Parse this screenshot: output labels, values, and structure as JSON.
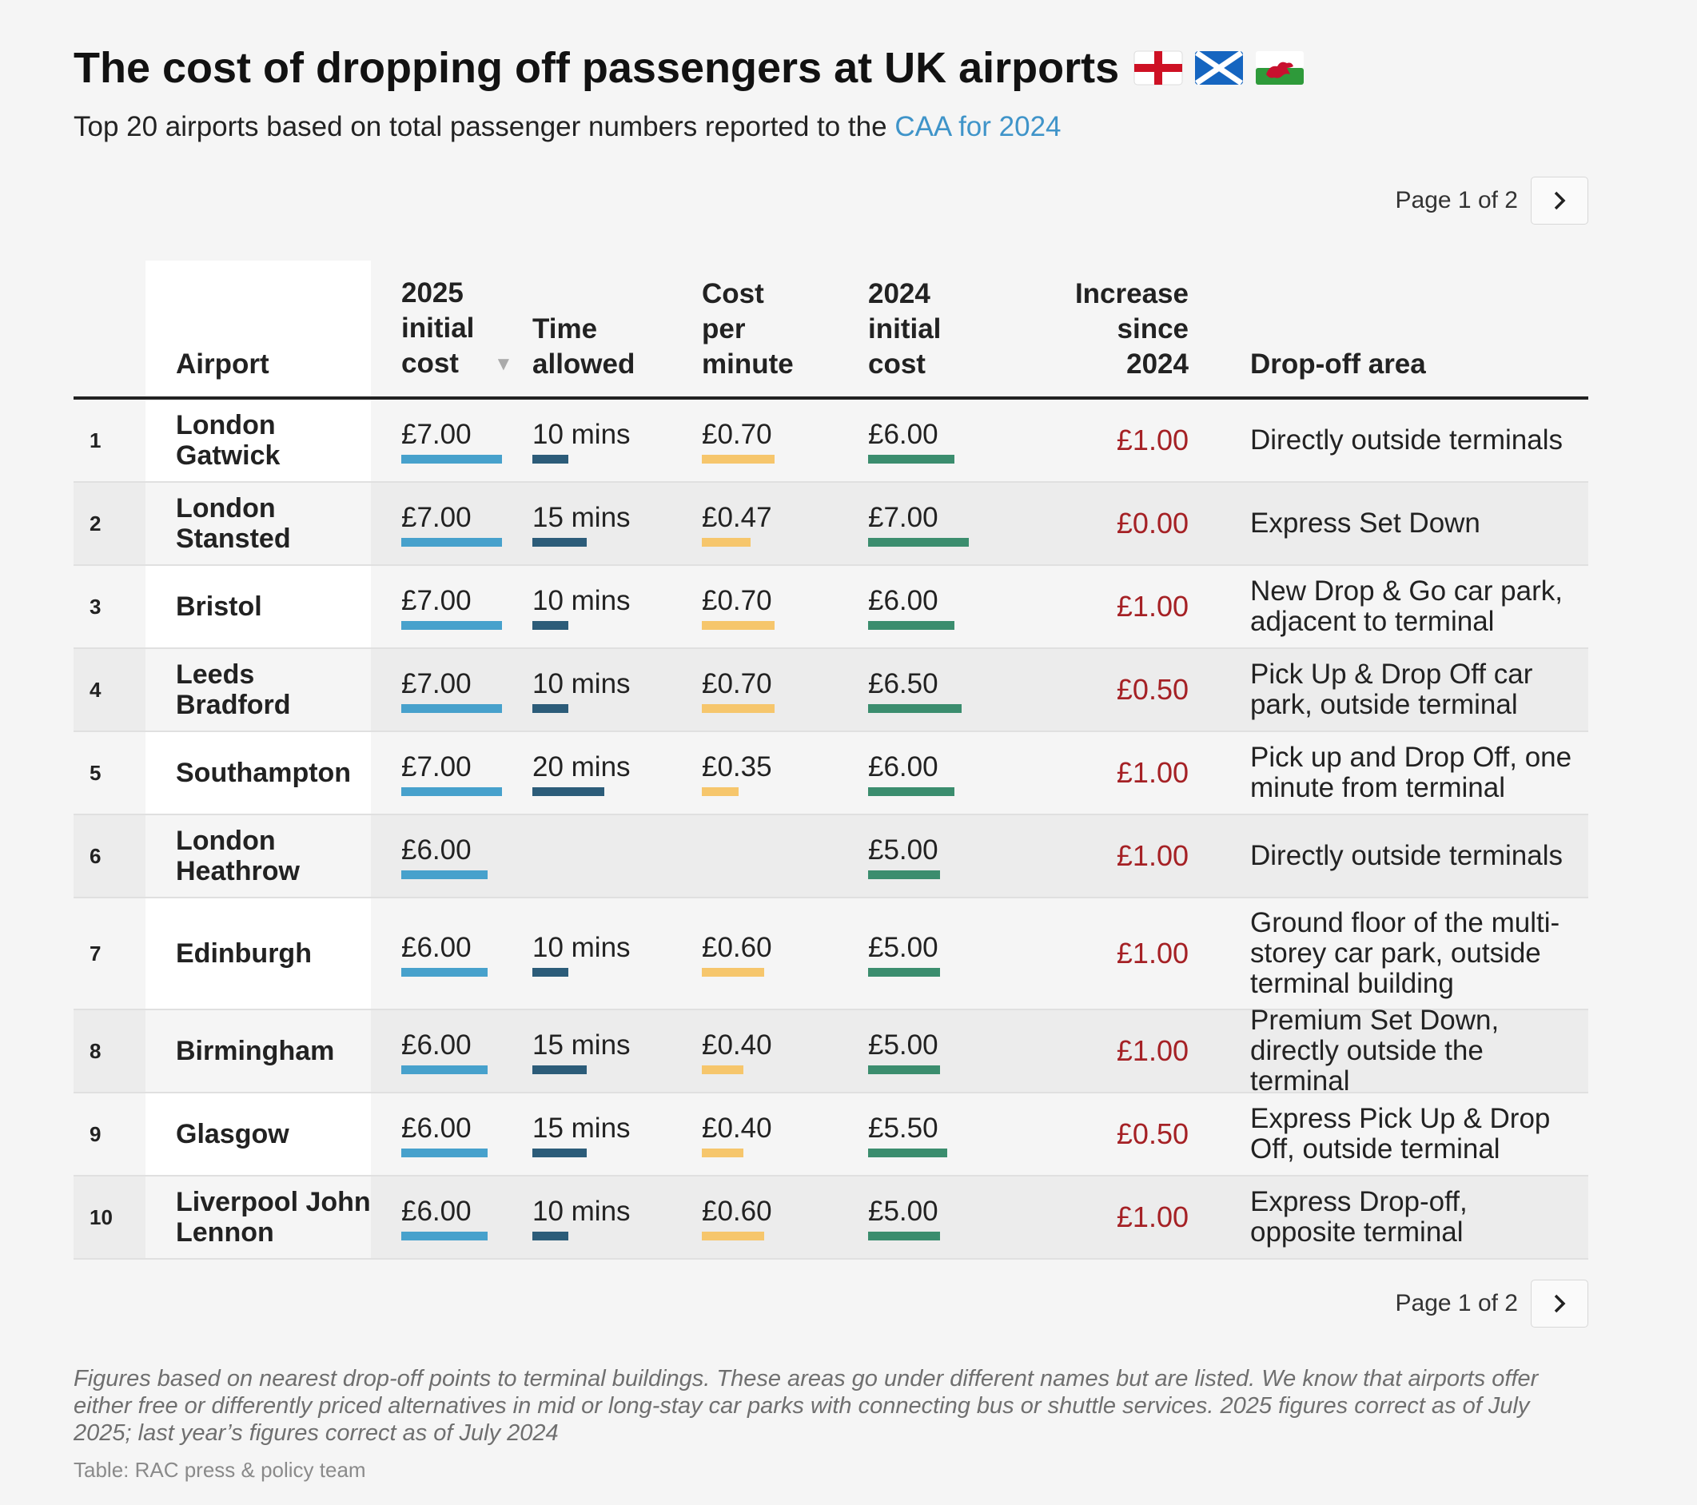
{
  "title": "The cost of dropping off passengers at UK airports",
  "subtitle_prefix": "Top 20 airports based on total passenger numbers reported to the ",
  "subtitle_link": "CAA for 2024",
  "flags": [
    "england-flag",
    "scotland-flag",
    "wales-flag"
  ],
  "pagination": {
    "label": "Page 1 of 2",
    "next_icon": "chevron-right-icon"
  },
  "columns": {
    "airport": "Airport",
    "cost_2025": "2025 initial cost",
    "time_allowed": "Time allowed",
    "cost_per_minute": "Cost per minute",
    "cost_2024": "2024 initial cost",
    "increase": "Increase since 2024",
    "dropoff_area": "Drop-off area"
  },
  "colors": {
    "cost_2025_bar": "#47a1cc",
    "time_bar": "#2c5c79",
    "cpm_bar": "#f6c66c",
    "cost_2024_bar": "#3b8d6e",
    "increase_text": "#a52125",
    "link": "#3f94c9"
  },
  "rows": [
    {
      "rank": "1",
      "airport": "London Gatwick",
      "cost_2025": "£7.00",
      "cost_2025_value": 7.0,
      "time": "10 mins",
      "time_value": 10,
      "cpm": "£0.70",
      "cpm_value": 0.7,
      "cost_2024": "£6.00",
      "cost_2024_value": 6.0,
      "increase": "£1.00",
      "area": "Directly outside terminals"
    },
    {
      "rank": "2",
      "airport": "London Stansted",
      "cost_2025": "£7.00",
      "cost_2025_value": 7.0,
      "time": "15 mins",
      "time_value": 15,
      "cpm": "£0.47",
      "cpm_value": 0.47,
      "cost_2024": "£7.00",
      "cost_2024_value": 7.0,
      "increase": "£0.00",
      "area": "Express Set Down"
    },
    {
      "rank": "3",
      "airport": "Bristol",
      "cost_2025": "£7.00",
      "cost_2025_value": 7.0,
      "time": "10 mins",
      "time_value": 10,
      "cpm": "£0.70",
      "cpm_value": 0.7,
      "cost_2024": "£6.00",
      "cost_2024_value": 6.0,
      "increase": "£1.00",
      "area": "New Drop & Go car park, adjacent to terminal"
    },
    {
      "rank": "4",
      "airport": "Leeds Bradford",
      "cost_2025": "£7.00",
      "cost_2025_value": 7.0,
      "time": "10 mins",
      "time_value": 10,
      "cpm": "£0.70",
      "cpm_value": 0.7,
      "cost_2024": "£6.50",
      "cost_2024_value": 6.5,
      "increase": "£0.50",
      "area": "Pick Up & Drop Off car park, outside terminal"
    },
    {
      "rank": "5",
      "airport": "Southampton",
      "cost_2025": "£7.00",
      "cost_2025_value": 7.0,
      "time": "20 mins",
      "time_value": 20,
      "cpm": "£0.35",
      "cpm_value": 0.35,
      "cost_2024": "£6.00",
      "cost_2024_value": 6.0,
      "increase": "£1.00",
      "area": "Pick up and Drop Off, one minute from terminal"
    },
    {
      "rank": "6",
      "airport": "London Heathrow",
      "cost_2025": "£6.00",
      "cost_2025_value": 6.0,
      "time": "",
      "time_value": 0,
      "cpm": "",
      "cpm_value": 0,
      "cost_2024": "£5.00",
      "cost_2024_value": 5.0,
      "increase": "£1.00",
      "area": "Directly outside terminals"
    },
    {
      "rank": "7",
      "airport": "Edinburgh",
      "cost_2025": "£6.00",
      "cost_2025_value": 6.0,
      "time": "10 mins",
      "time_value": 10,
      "cpm": "£0.60",
      "cpm_value": 0.6,
      "cost_2024": "£5.00",
      "cost_2024_value": 5.0,
      "increase": "£1.00",
      "area": "Ground floor of the multi-storey car park, outside terminal building"
    },
    {
      "rank": "8",
      "airport": "Birmingham",
      "cost_2025": "£6.00",
      "cost_2025_value": 6.0,
      "time": "15 mins",
      "time_value": 15,
      "cpm": "£0.40",
      "cpm_value": 0.4,
      "cost_2024": "£5.00",
      "cost_2024_value": 5.0,
      "increase": "£1.00",
      "area": "Premium Set Down, directly outside the terminal"
    },
    {
      "rank": "9",
      "airport": "Glasgow",
      "cost_2025": "£6.00",
      "cost_2025_value": 6.0,
      "time": "15 mins",
      "time_value": 15,
      "cpm": "£0.40",
      "cpm_value": 0.4,
      "cost_2024": "£5.50",
      "cost_2024_value": 5.5,
      "increase": "£0.50",
      "area": "Express Pick Up & Drop Off, outside terminal"
    },
    {
      "rank": "10",
      "airport": "Liverpool John Lennon",
      "cost_2025": "£6.00",
      "cost_2025_value": 6.0,
      "time": "10 mins",
      "time_value": 10,
      "cpm": "£0.60",
      "cpm_value": 0.6,
      "cost_2024": "£5.00",
      "cost_2024_value": 5.0,
      "increase": "£1.00",
      "area": "Express Drop-off, opposite terminal"
    }
  ],
  "footnote": "Figures based on nearest drop-off points to terminal buildings. These areas go under different names but are listed. We know that airports offer either free or differently priced alternatives in mid or long-stay car parks with connecting bus or shuttle services. 2025 figures correct as of July 2025; last year’s figures correct as of July 2024",
  "source": "Table: RAC press & policy team"
}
